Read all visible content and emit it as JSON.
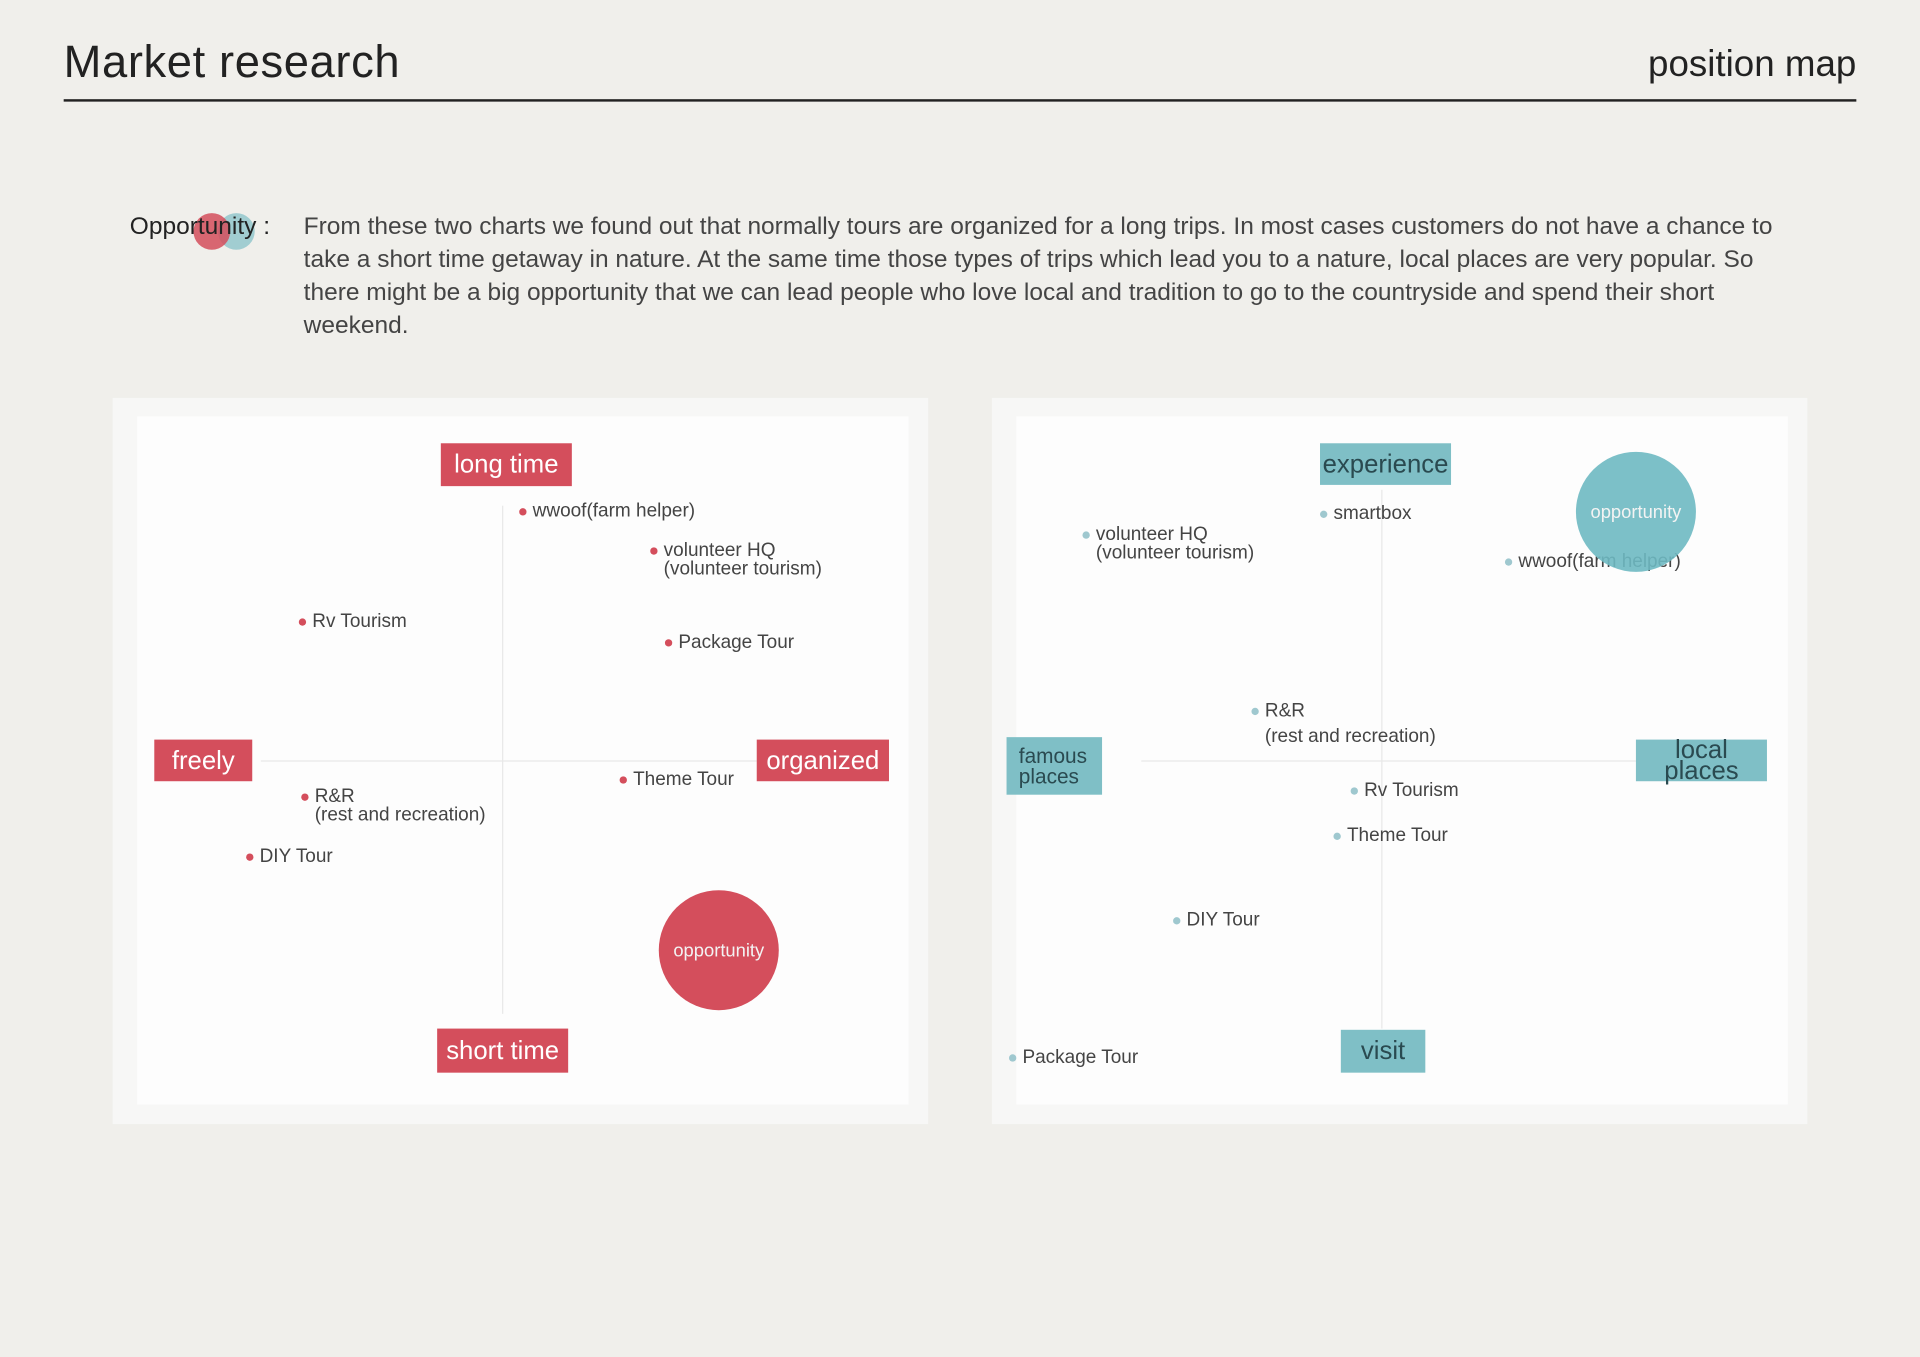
{
  "header": {
    "title": "Market research",
    "subtitle": "position map"
  },
  "opportunity": {
    "label": "Opportunity :",
    "text": "From these two charts we found out that normally tours are organized for a long trips. In most cases customers do not have a chance to take a short time getaway in nature. At the same time those types of trips which lead you to a nature, local places are very popular. So there might be a big opportunity that we can lead people who love local and tradition to go to the countryside and spend their short weekend."
  },
  "maps": [
    {
      "axes": {
        "top": "long time",
        "bottom": "short time",
        "left": "freely",
        "right": "organized"
      },
      "opportunity": "opportunity",
      "points": [
        {
          "lines": [
            "wwoof(farm helper)"
          ]
        },
        {
          "lines": [
            "volunteer HQ",
            "(volunteer tourism)"
          ]
        },
        {
          "lines": [
            "Rv Tourism"
          ]
        },
        {
          "lines": [
            "Package Tour"
          ]
        },
        {
          "lines": [
            "Theme Tour"
          ]
        },
        {
          "lines": [
            "R&R",
            "(rest and recreation)"
          ]
        },
        {
          "lines": [
            "DIY Tour"
          ]
        }
      ]
    },
    {
      "axes": {
        "top": "experience",
        "bottom": "visit",
        "left": "famous places",
        "right": "local places"
      },
      "opportunity": "opportunity",
      "points": [
        {
          "lines": [
            "volunteer HQ",
            "(volunteer tourism)"
          ]
        },
        {
          "lines": [
            "smartbox"
          ]
        },
        {
          "lines": [
            "wwoof(farm helper)"
          ]
        },
        {
          "lines": [
            "R&R",
            "(rest and recreation)"
          ]
        },
        {
          "lines": [
            "Rv Tourism"
          ]
        },
        {
          "lines": [
            "Theme Tour"
          ]
        },
        {
          "lines": [
            "DIY Tour"
          ]
        },
        {
          "lines": [
            "Package Tour"
          ]
        }
      ]
    }
  ]
}
